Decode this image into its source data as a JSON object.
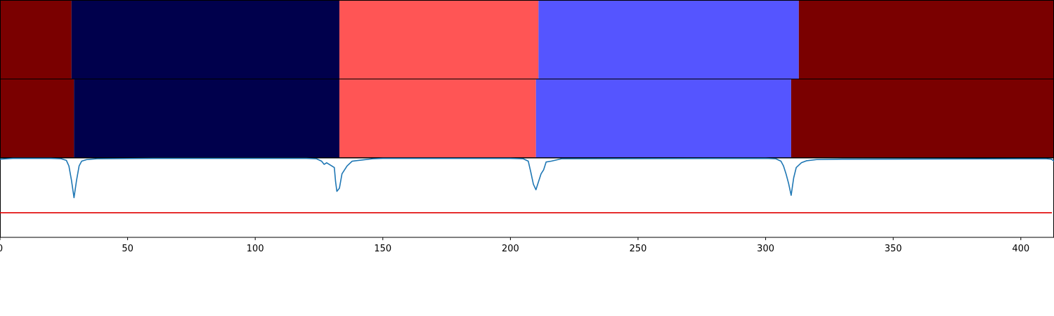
{
  "chart_data": {
    "type": "segmentation-strips-with-line",
    "xlim": [
      0,
      413
    ],
    "x_ticks": [
      0,
      50,
      100,
      150,
      200,
      250,
      300,
      350,
      400
    ],
    "colors": {
      "dark_red": "#7a0000",
      "navy": "#00004c",
      "light_red": "#ff5555",
      "light_blue": "#5555ff",
      "signal_line": "#1f77b4",
      "threshold_line": "#e00000"
    },
    "strips": [
      {
        "segments": [
          {
            "start": 0,
            "end": 28,
            "color": "dark_red"
          },
          {
            "start": 28,
            "end": 133,
            "color": "navy"
          },
          {
            "start": 133,
            "end": 211,
            "color": "light_red"
          },
          {
            "start": 211,
            "end": 313,
            "color": "light_blue"
          },
          {
            "start": 313,
            "end": 413,
            "color": "dark_red"
          }
        ]
      },
      {
        "segments": [
          {
            "start": 0,
            "end": 29,
            "color": "dark_red"
          },
          {
            "start": 29,
            "end": 133,
            "color": "navy"
          },
          {
            "start": 133,
            "end": 210,
            "color": "light_red"
          },
          {
            "start": 210,
            "end": 310,
            "color": "light_blue"
          },
          {
            "start": 310,
            "end": 413,
            "color": "dark_red"
          }
        ]
      }
    ],
    "line_panel": {
      "ylim": [
        0,
        1
      ],
      "threshold": 0.31,
      "signal": [
        [
          0,
          0.985
        ],
        [
          5,
          0.995
        ],
        [
          20,
          0.995
        ],
        [
          24,
          0.99
        ],
        [
          26,
          0.97
        ],
        [
          27,
          0.9
        ],
        [
          28,
          0.72
        ],
        [
          29,
          0.5
        ],
        [
          30,
          0.72
        ],
        [
          31,
          0.9
        ],
        [
          32,
          0.96
        ],
        [
          34,
          0.98
        ],
        [
          38,
          0.99
        ],
        [
          60,
          0.995
        ],
        [
          100,
          0.995
        ],
        [
          120,
          0.995
        ],
        [
          124,
          0.99
        ],
        [
          126,
          0.96
        ],
        [
          127,
          0.92
        ],
        [
          128,
          0.94
        ],
        [
          129,
          0.92
        ],
        [
          131,
          0.88
        ],
        [
          131.5,
          0.7
        ],
        [
          132,
          0.58
        ],
        [
          133,
          0.62
        ],
        [
          134,
          0.8
        ],
        [
          136,
          0.9
        ],
        [
          138,
          0.96
        ],
        [
          142,
          0.975
        ],
        [
          146,
          0.99
        ],
        [
          150,
          0.995
        ],
        [
          200,
          0.995
        ],
        [
          205,
          0.99
        ],
        [
          207,
          0.96
        ],
        [
          208,
          0.82
        ],
        [
          209,
          0.67
        ],
        [
          210,
          0.6
        ],
        [
          211,
          0.7
        ],
        [
          212,
          0.8
        ],
        [
          213,
          0.85
        ],
        [
          214,
          0.95
        ],
        [
          216,
          0.96
        ],
        [
          220,
          0.99
        ],
        [
          300,
          0.995
        ],
        [
          304,
          0.99
        ],
        [
          306,
          0.96
        ],
        [
          307,
          0.9
        ],
        [
          308,
          0.8
        ],
        [
          309,
          0.68
        ],
        [
          310,
          0.53
        ],
        [
          311,
          0.75
        ],
        [
          312,
          0.88
        ],
        [
          314,
          0.94
        ],
        [
          316,
          0.965
        ],
        [
          320,
          0.98
        ],
        [
          330,
          0.985
        ],
        [
          400,
          0.99
        ],
        [
          410,
          0.99
        ],
        [
          412,
          0.985
        ],
        [
          413,
          0.96
        ]
      ]
    }
  }
}
